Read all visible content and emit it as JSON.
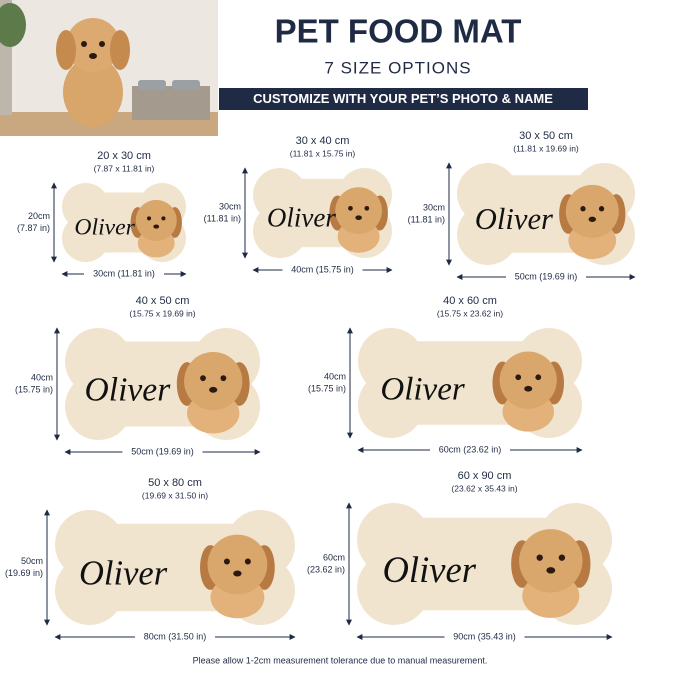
{
  "header": {
    "title": "PET FOOD MAT",
    "subtitle": "7 SIZE OPTIONS",
    "banner": "CUSTOMIZE WITH YOUR PET’S PHOTO & NAME"
  },
  "mats": [
    {
      "size": "20 x 30 cm",
      "size_in": "(7.87 x 11.81 in)",
      "height": "20cm",
      "height_in": "(7.87 in)",
      "width": "30cm (11.81 in)",
      "name": "Oliver"
    },
    {
      "size": "30 x 40 cm",
      "size_in": "(11.81 x 15.75 in)",
      "height": "30cm",
      "height_in": "(11.81 in)",
      "width": "40cm (15.75 in)",
      "name": "Oliver"
    },
    {
      "size": "30 x 50 cm",
      "size_in": "(11.81 x 19.69 in)",
      "height": "30cm",
      "height_in": "(11.81 in)",
      "width": "50cm (19.69 in)",
      "name": "Oliver"
    },
    {
      "size": "40 x 50 cm",
      "size_in": "(15.75 x 19.69 in)",
      "height": "40cm",
      "height_in": "(15.75 in)",
      "width": "50cm (19.69 in)",
      "name": "Oliver"
    },
    {
      "size": "40 x 60 cm",
      "size_in": "(15.75 x 23.62 in)",
      "height": "40cm",
      "height_in": "(15.75 in)",
      "width": "60cm (23.62 in)",
      "name": "Oliver"
    },
    {
      "size": "50 x 80 cm",
      "size_in": "(19.69 x 31.50 in)",
      "height": "50cm",
      "height_in": "(19.69 in)",
      "width": "80cm (31.50 in)",
      "name": "Oliver"
    },
    {
      "size": "60 x 90 cm",
      "size_in": "(23.62 x 35.43 in)",
      "height": "60cm",
      "height_in": "(23.62 in)",
      "width": "90cm (35.43 in)",
      "name": "Oliver"
    }
  ],
  "footer": {
    "note": "Please allow 1-2cm measurement tolerance due to manual measurement."
  }
}
